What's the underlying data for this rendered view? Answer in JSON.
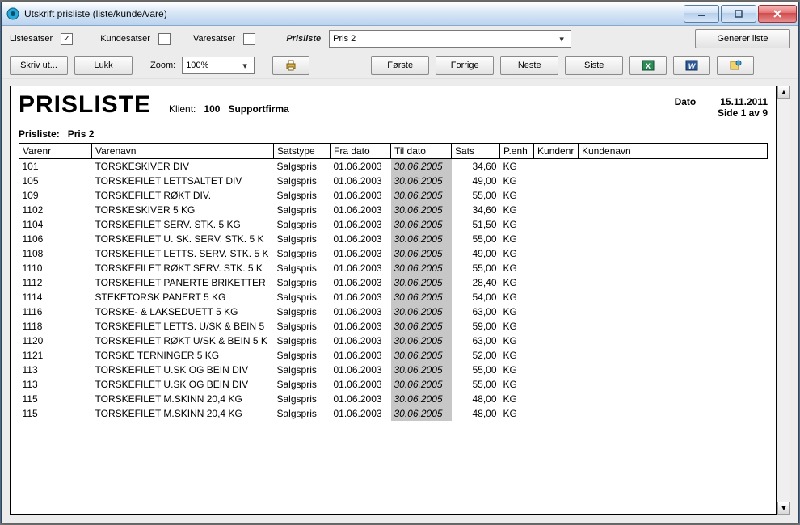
{
  "window": {
    "title": "Utskrift prisliste (liste/kunde/vare)"
  },
  "bar1": {
    "listesatser": "Listesatser",
    "kundesatser": "Kundesatser",
    "varesatser": "Varesatser",
    "prisliste_label": "Prisliste",
    "prisliste_value": "Pris 2",
    "generer": "Generer liste"
  },
  "bar2": {
    "skriv_ut": "Skriv ut...",
    "lukk": "Lukk",
    "zoom_label": "Zoom:",
    "zoom_value": "100%",
    "forste": "Første",
    "forrige": "Forrige",
    "neste": "Neste",
    "siste": "Siste"
  },
  "report": {
    "title": "PRISLISTE",
    "klient_label": "Klient:",
    "klient_kode": "100",
    "klient_navn": "Supportfirma",
    "dato_label": "Dato",
    "dato_value": "15.11.2011",
    "side": "Side 1 av 9",
    "prisliste_label": "Prisliste:",
    "prisliste_value": "Pris 2",
    "columns": {
      "varenr": "Varenr",
      "varenavn": "Varenavn",
      "satstype": "Satstype",
      "fra_dato": "Fra dato",
      "til_dato": "Til dato",
      "sats": "Sats",
      "penh": "P.enh",
      "kundenr": "Kundenr",
      "kundenavn": "Kundenavn"
    },
    "rows": [
      {
        "nr": "101",
        "navn": "TORSKESKIVER DIV",
        "type": "Salgspris",
        "fra": "01.06.2003",
        "til": "30.06.2005",
        "sats": "34,60",
        "enh": "KG"
      },
      {
        "nr": "105",
        "navn": "TORSKEFILET LETTSALTET DIV",
        "type": "Salgspris",
        "fra": "01.06.2003",
        "til": "30.06.2005",
        "sats": "49,00",
        "enh": "KG"
      },
      {
        "nr": "109",
        "navn": "TORSKEFILET RØKT DIV.",
        "type": "Salgspris",
        "fra": "01.06.2003",
        "til": "30.06.2005",
        "sats": "55,00",
        "enh": "KG"
      },
      {
        "nr": "1102",
        "navn": "TORSKESKIVER 5 KG",
        "type": "Salgspris",
        "fra": "01.06.2003",
        "til": "30.06.2005",
        "sats": "34,60",
        "enh": "KG"
      },
      {
        "nr": "1104",
        "navn": "TORSKEFILET SERV. STK. 5 KG",
        "type": "Salgspris",
        "fra": "01.06.2003",
        "til": "30.06.2005",
        "sats": "51,50",
        "enh": "KG"
      },
      {
        "nr": "1106",
        "navn": "TORSKEFILET U. SK. SERV. STK. 5 K",
        "type": "Salgspris",
        "fra": "01.06.2003",
        "til": "30.06.2005",
        "sats": "55,00",
        "enh": "KG"
      },
      {
        "nr": "1108",
        "navn": "TORSKEFILET LETTS. SERV. STK. 5 K",
        "type": "Salgspris",
        "fra": "01.06.2003",
        "til": "30.06.2005",
        "sats": "49,00",
        "enh": "KG"
      },
      {
        "nr": "1110",
        "navn": "TORSKEFILET RØKT SERV. STK. 5 K",
        "type": "Salgspris",
        "fra": "01.06.2003",
        "til": "30.06.2005",
        "sats": "55,00",
        "enh": "KG"
      },
      {
        "nr": "1112",
        "navn": "TORSKEFILET PANERTE BRIKETTER",
        "type": "Salgspris",
        "fra": "01.06.2003",
        "til": "30.06.2005",
        "sats": "28,40",
        "enh": "KG"
      },
      {
        "nr": "1114",
        "navn": "STEKETORSK PANERT 5 KG",
        "type": "Salgspris",
        "fra": "01.06.2003",
        "til": "30.06.2005",
        "sats": "54,00",
        "enh": "KG"
      },
      {
        "nr": "1116",
        "navn": "TORSKE- & LAKSEDUETT 5 KG",
        "type": "Salgspris",
        "fra": "01.06.2003",
        "til": "30.06.2005",
        "sats": "63,00",
        "enh": "KG"
      },
      {
        "nr": "1118",
        "navn": "TORSKEFILET LETTS. U/SK & BEIN 5",
        "type": "Salgspris",
        "fra": "01.06.2003",
        "til": "30.06.2005",
        "sats": "59,00",
        "enh": "KG"
      },
      {
        "nr": "1120",
        "navn": "TORSKEFILET RØKT U/SK & BEIN 5 K",
        "type": "Salgspris",
        "fra": "01.06.2003",
        "til": "30.06.2005",
        "sats": "63,00",
        "enh": "KG"
      },
      {
        "nr": "1121",
        "navn": "TORSKE TERNINGER 5 KG",
        "type": "Salgspris",
        "fra": "01.06.2003",
        "til": "30.06.2005",
        "sats": "52,00",
        "enh": "KG"
      },
      {
        "nr": "113",
        "navn": "TORSKEFILET U.SK OG BEIN DIV",
        "type": "Salgspris",
        "fra": "01.06.2003",
        "til": "30.06.2005",
        "sats": "55,00",
        "enh": "KG"
      },
      {
        "nr": "113",
        "navn": "TORSKEFILET U.SK OG BEIN DIV",
        "type": "Salgspris",
        "fra": "01.06.2003",
        "til": "30.06.2005",
        "sats": "55,00",
        "enh": "KG"
      },
      {
        "nr": "115",
        "navn": "TORSKEFILET M.SKINN 20,4 KG",
        "type": "Salgspris",
        "fra": "01.06.2003",
        "til": "30.06.2005",
        "sats": "48,00",
        "enh": "KG"
      },
      {
        "nr": "115",
        "navn": "TORSKEFILET M.SKINN 20,4 KG",
        "type": "Salgspris",
        "fra": "01.06.2003",
        "til": "30.06.2005",
        "sats": "48,00",
        "enh": "KG"
      }
    ]
  }
}
